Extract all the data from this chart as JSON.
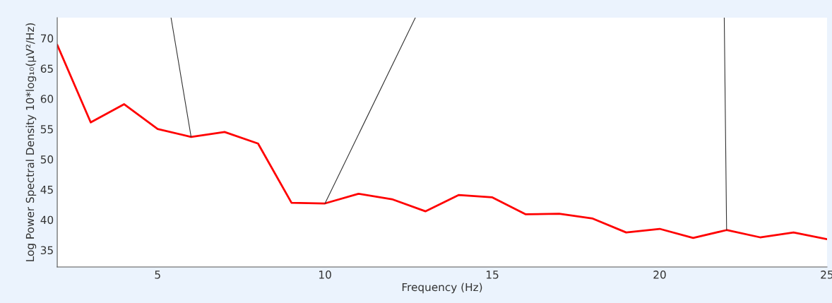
{
  "chart_data": {
    "type": "line",
    "xlabel": "Frequency (Hz)",
    "ylabel": "Log Power Spectral Density 10*log₁₀(μV²/Hz)",
    "x": [
      2,
      3,
      4,
      5,
      6,
      7,
      8,
      9,
      10,
      11,
      12,
      13,
      14,
      15,
      16,
      17,
      18,
      19,
      20,
      21,
      22,
      23,
      24,
      25
    ],
    "series": [
      {
        "color": "#ff0000",
        "values": [
          68.9,
          56.1,
          59.1,
          55.0,
          53.7,
          54.5,
          52.6,
          42.8,
          42.7,
          44.3,
          43.4,
          41.4,
          44.1,
          43.7,
          40.9,
          41.0,
          40.2,
          37.9,
          38.5,
          37.0,
          38.3,
          37.1,
          37.9,
          36.8
        ]
      },
      {
        "color": "#333333",
        "x": [
          5.4,
          6
        ],
        "values": [
          73.4,
          53.7
        ]
      },
      {
        "color": "#333333",
        "x": [
          12.7,
          10
        ],
        "values": [
          73.4,
          42.7
        ]
      },
      {
        "color": "#333333",
        "x": [
          21.93,
          22
        ],
        "values": [
          73.4,
          38.3
        ]
      }
    ],
    "xlim": [
      2,
      25
    ],
    "ylim": [
      32.2,
      73.4
    ],
    "xticks": [
      5,
      10,
      15,
      20,
      25
    ],
    "yticks": [
      35,
      40,
      45,
      50,
      55,
      60,
      65,
      70
    ],
    "grid": false,
    "legend": false,
    "marker": "none",
    "line_style": "solid"
  }
}
